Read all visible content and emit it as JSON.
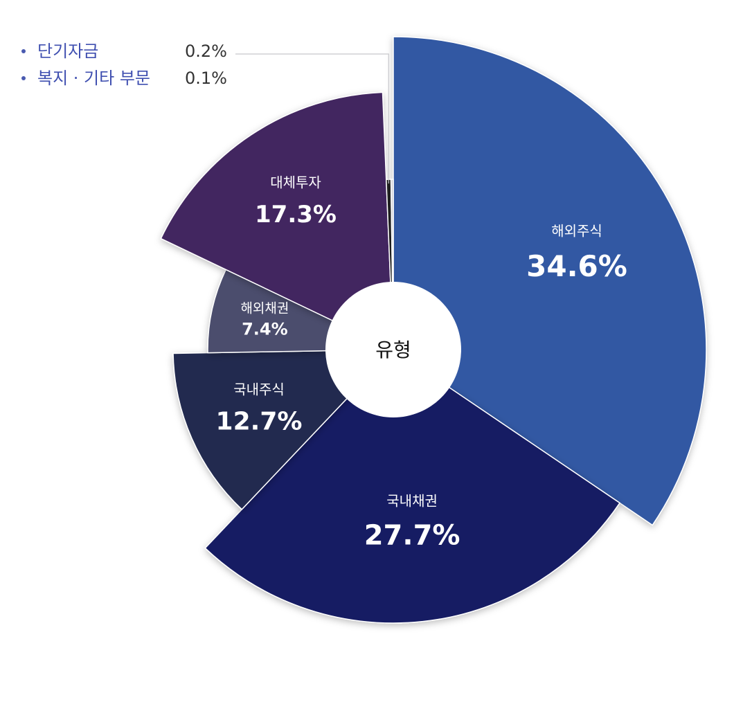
{
  "chart_data": {
    "type": "pie",
    "center_label": "유형",
    "slices": [
      {
        "label": "해외주식",
        "value": 34.6,
        "value_label": "34.6%",
        "color": "#3358a3"
      },
      {
        "label": "국내채권",
        "value": 27.7,
        "value_label": "27.7%",
        "color": "#171d63"
      },
      {
        "label": "국내주식",
        "value": 12.7,
        "value_label": "12.7%",
        "color": "#212a4f"
      },
      {
        "label": "해외채권",
        "value": 7.4,
        "value_label": "7.4%",
        "color": "#4c4e6d"
      },
      {
        "label": "대체투자",
        "value": 17.3,
        "value_label": "17.3%",
        "color": "#432560"
      },
      {
        "label": "단기자금",
        "value": 0.2,
        "value_label": "0.2%",
        "color": "#1f1f1f"
      },
      {
        "label": "복지 · 기타 부문",
        "value": 0.1,
        "value_label": "0.1%",
        "color": "#cfcfd6"
      }
    ],
    "legend": [
      {
        "label": "단기자금",
        "value_label": "0.2%"
      },
      {
        "label": "복지 · 기타 부문",
        "value_label": "0.1%"
      }
    ],
    "legend_position": "top-left"
  }
}
